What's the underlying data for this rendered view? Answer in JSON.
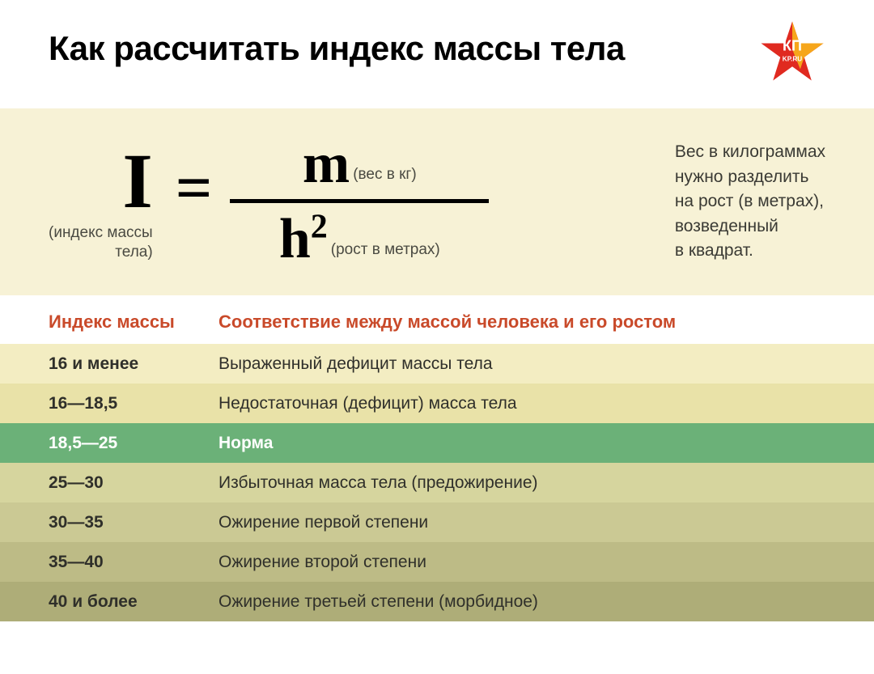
{
  "title": "Как рассчитать индекс массы тела",
  "logo": {
    "text1": "КП",
    "text2": "KP.RU",
    "color_star": "#e02a20",
    "color_star2": "#f6a61b"
  },
  "formula": {
    "band_bg": "#f7f2d6",
    "I": "I",
    "I_caption_l1": "(индекс массы",
    "I_caption_l2": "тела)",
    "equals": "=",
    "m": "m",
    "m_caption": "(вес в кг)",
    "h": "h",
    "h_exp": "2",
    "h_caption": "(рост в метрах)",
    "desc_l1": "Вес в килограммах",
    "desc_l2": "нужно разделить",
    "desc_l3": "на рост (в метрах),",
    "desc_l4": "возведенный",
    "desc_l5": "в квадрат."
  },
  "table": {
    "header_color": "#c94a2a",
    "col1": "Индекс массы",
    "col2": "Соответствие между массой человека и его ростом",
    "rows": [
      {
        "range": "16 и менее",
        "label": "Выраженный дефицит массы тела",
        "bg": "#f3edc2",
        "highlight": false
      },
      {
        "range": "16—18,5",
        "label": "Недостаточная (дефицит) масса тела",
        "bg": "#e9e2a8",
        "highlight": false
      },
      {
        "range": "18,5—25",
        "label": "Норма",
        "bg": "#6bb178",
        "highlight": true
      },
      {
        "range": "25—30",
        "label": "Избыточная масса тела (предожирение)",
        "bg": "#d6d59e",
        "highlight": false
      },
      {
        "range": "30—35",
        "label": "Ожирение первой степени",
        "bg": "#cbc994",
        "highlight": false
      },
      {
        "range": "35—40",
        "label": "Ожирение второй степени",
        "bg": "#bdbb86",
        "highlight": false
      },
      {
        "range": "40 и более",
        "label": "Ожирение третьей степени (морбидное)",
        "bg": "#aead78",
        "highlight": false
      }
    ]
  }
}
